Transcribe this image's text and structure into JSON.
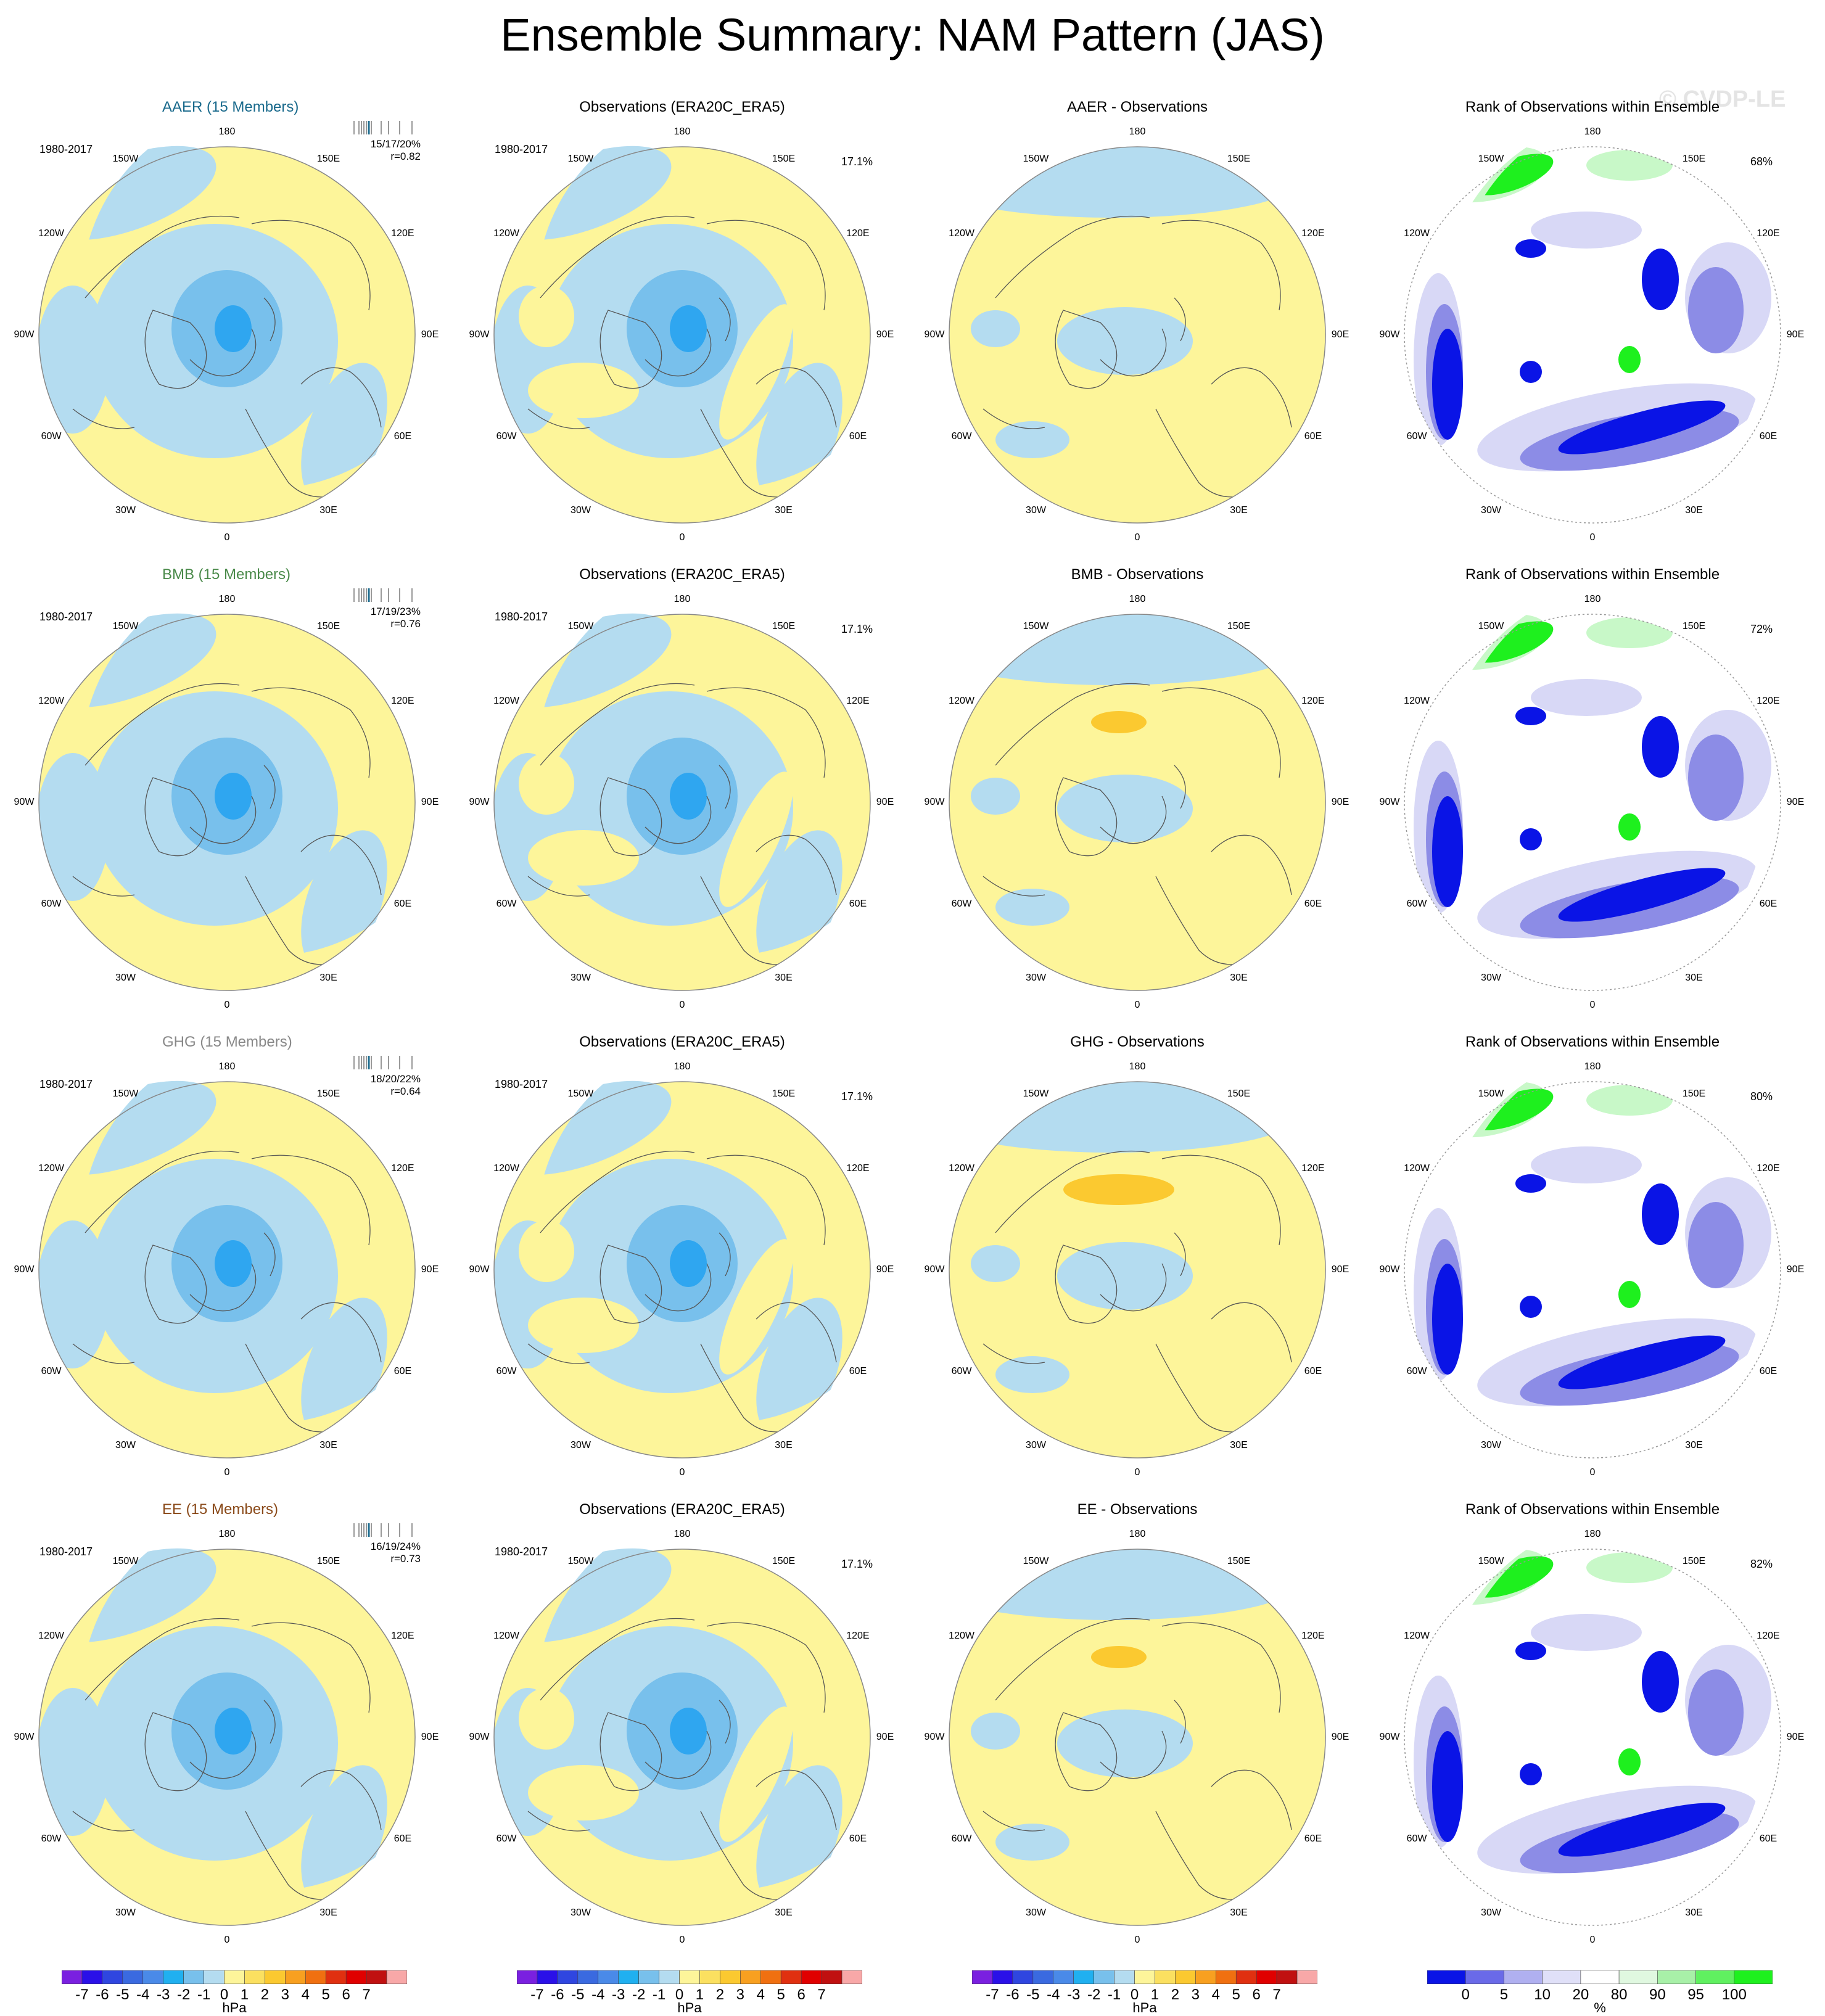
{
  "title": "Ensemble Summary: NAM Pattern (JAS)",
  "watermark": "© CVDP-LE",
  "lon_labels": {
    "top": "180",
    "tl": "150W",
    "tr": "150E",
    "ul": "120W",
    "ur": "120E",
    "ml": "90W",
    "mr": "90E",
    "ll": "60W",
    "lr": "60E",
    "bl": "30W",
    "br": "30E",
    "bottom": "0"
  },
  "colors": {
    "blue_light": "#b4dcf0",
    "blue_mid": "#78c0ec",
    "blue_strong": "#2fa6f0",
    "yellow": "#fdf59a",
    "orange": "#fbc930",
    "rank_dark": "#0a14e6",
    "rank_mid": "#8c8ce6",
    "rank_light": "#d8d8f6",
    "green_dark": "#1ef01e",
    "green_light": "#c8f8c8"
  },
  "rows": [
    {
      "ensemble_title": "AAER (15 Members)",
      "title_color": "#1a6a8c",
      "period": "1980-2017",
      "stats_line1": "15/17/20%",
      "stats_line2": "r=0.82",
      "obs_title": "Observations (ERA20C_ERA5)",
      "obs_period": "1980-2017",
      "obs_pct": "17.1%",
      "diff_title": "AAER - Observations",
      "rank_title": "Rank of Observations within Ensemble",
      "rank_pct": "68%"
    },
    {
      "ensemble_title": "BMB (15 Members)",
      "title_color": "#4a8a4a",
      "period": "1980-2017",
      "stats_line1": "17/19/23%",
      "stats_line2": "r=0.76",
      "obs_title": "Observations (ERA20C_ERA5)",
      "obs_period": "1980-2017",
      "obs_pct": "17.1%",
      "diff_title": "BMB - Observations",
      "rank_title": "Rank of Observations within Ensemble",
      "rank_pct": "72%"
    },
    {
      "ensemble_title": "GHG (15 Members)",
      "title_color": "#888888",
      "period": "1980-2017",
      "stats_line1": "18/20/22%",
      "stats_line2": "r=0.64",
      "obs_title": "Observations (ERA20C_ERA5)",
      "obs_period": "1980-2017",
      "obs_pct": "17.1%",
      "diff_title": "GHG - Observations",
      "rank_title": "Rank of Observations within Ensemble",
      "rank_pct": "80%"
    },
    {
      "ensemble_title": "EE (15 Members)",
      "title_color": "#8a4a1a",
      "period": "1980-2017",
      "stats_line1": "16/19/24%",
      "stats_line2": "r=0.73",
      "obs_title": "Observations (ERA20C_ERA5)",
      "obs_period": "1980-2017",
      "obs_pct": "17.1%",
      "diff_title": "EE - Observations",
      "rank_title": "Rank of Observations within Ensemble",
      "rank_pct": "82%"
    }
  ],
  "colorbar_hpa": {
    "labels": [
      "-7",
      "-6",
      "-5",
      "-4",
      "-3",
      "-2",
      "-1",
      "0",
      "1",
      "2",
      "3",
      "4",
      "5",
      "6",
      "7"
    ],
    "unit": "hPa",
    "colors": [
      "#7a20e0",
      "#2a10e8",
      "#2f46e0",
      "#3a6ae0",
      "#4a8ae8",
      "#20b0f0",
      "#78c0ec",
      "#b4dcf0",
      "#fdf59a",
      "#fbe060",
      "#fbc930",
      "#f8a020",
      "#f07010",
      "#e03010",
      "#e00000",
      "#c01010",
      "#f8a8a8"
    ]
  },
  "colorbar_rank": {
    "labels": [
      "0",
      "5",
      "10",
      "20",
      "80",
      "90",
      "95",
      "100"
    ],
    "unit": "%",
    "colors": [
      "#0a14e6",
      "#6a6ae8",
      "#b0b0f0",
      "#e0e0f8",
      "#ffffff",
      "#e0f8e0",
      "#a8f0a8",
      "#60f060",
      "#1ef01e"
    ]
  }
}
